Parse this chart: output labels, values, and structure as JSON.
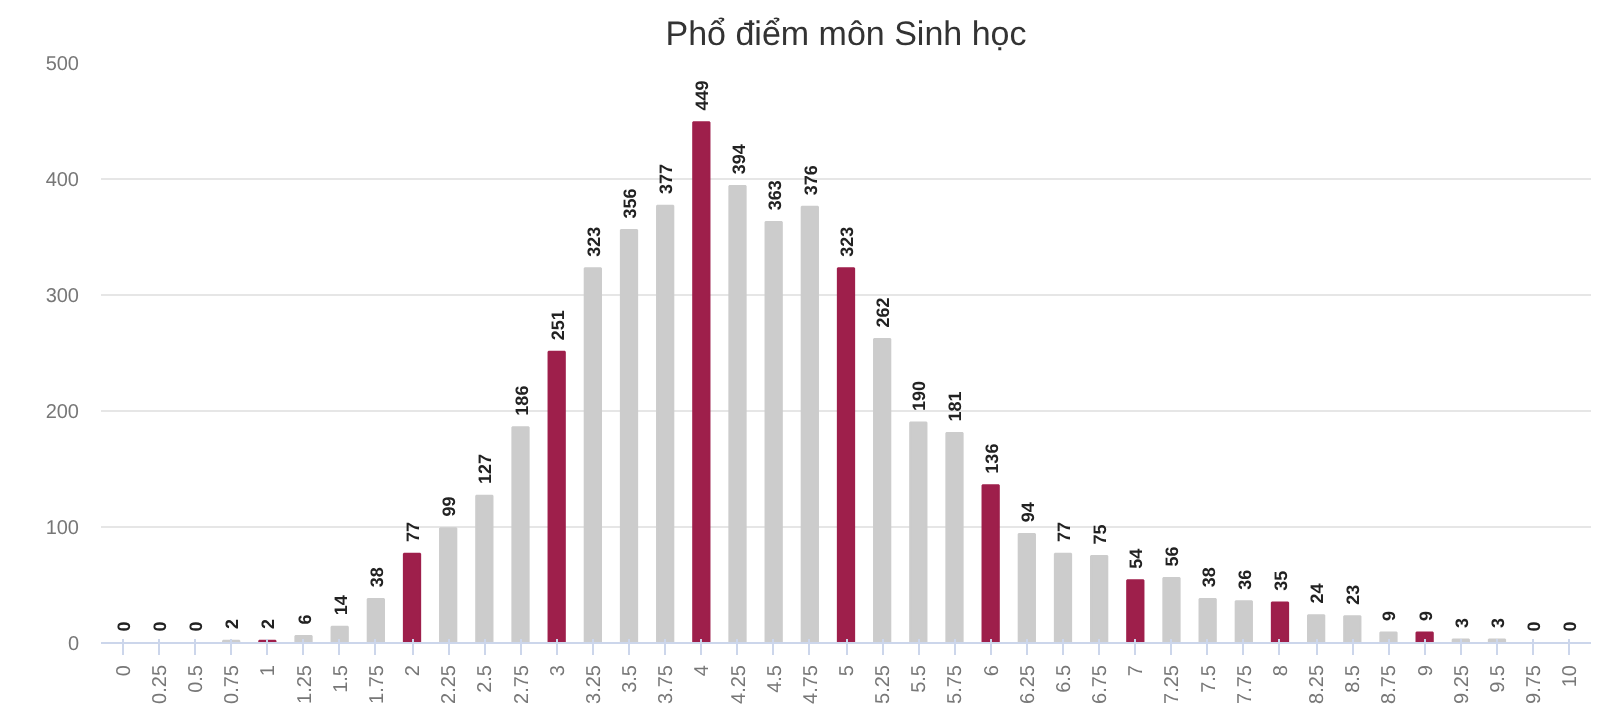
{
  "chart_data": {
    "type": "bar",
    "title": "Phổ điểm môn Sinh học",
    "categories": [
      "0",
      "0.25",
      "0.5",
      "0.75",
      "1",
      "1.25",
      "1.5",
      "1.75",
      "2",
      "2.25",
      "2.5",
      "2.75",
      "3",
      "3.25",
      "3.5",
      "3.75",
      "4",
      "4.25",
      "4.5",
      "4.75",
      "5",
      "5.25",
      "5.5",
      "5.75",
      "6",
      "6.25",
      "6.5",
      "6.75",
      "7",
      "7.25",
      "7.5",
      "7.75",
      "8",
      "8.25",
      "8.5",
      "8.75",
      "9",
      "9.25",
      "9.5",
      "9.75",
      "10"
    ],
    "values": [
      0,
      0,
      0,
      2,
      2,
      6,
      14,
      38,
      77,
      99,
      127,
      186,
      251,
      323,
      356,
      377,
      449,
      394,
      363,
      376,
      323,
      262,
      190,
      181,
      136,
      94,
      77,
      75,
      54,
      56,
      38,
      36,
      35,
      24,
      23,
      9,
      9,
      3,
      3,
      0,
      0
    ],
    "colors": [
      "#9e1f4b",
      "#cccccc",
      "#cccccc",
      "#cccccc",
      "#9e1f4b",
      "#cccccc",
      "#cccccc",
      "#cccccc",
      "#9e1f4b",
      "#cccccc",
      "#cccccc",
      "#cccccc",
      "#9e1f4b",
      "#cccccc",
      "#cccccc",
      "#cccccc",
      "#9e1f4b",
      "#cccccc",
      "#cccccc",
      "#cccccc",
      "#9e1f4b",
      "#cccccc",
      "#cccccc",
      "#cccccc",
      "#9e1f4b",
      "#cccccc",
      "#cccccc",
      "#cccccc",
      "#9e1f4b",
      "#cccccc",
      "#cccccc",
      "#cccccc",
      "#9e1f4b",
      "#cccccc",
      "#cccccc",
      "#cccccc",
      "#9e1f4b",
      "#cccccc",
      "#cccccc",
      "#cccccc",
      "#9e1f4b"
    ],
    "ylim": [
      0,
      500
    ],
    "yticks": [
      0,
      100,
      200,
      300,
      400,
      500
    ],
    "grid": "y",
    "data_labels": true
  }
}
